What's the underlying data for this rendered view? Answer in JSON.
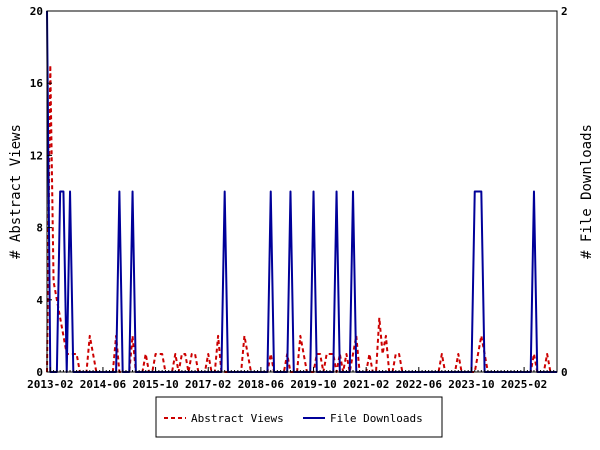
{
  "chart_data": {
    "type": "line",
    "title": "",
    "ylabel": "# Abstract Views",
    "y2label": "# File Downloads",
    "ylim": [
      0,
      20
    ],
    "y2lim": [
      0,
      2
    ],
    "yticks": [
      "0",
      "4",
      "8",
      "12",
      "16",
      "20"
    ],
    "y2ticks": [
      "0",
      "2"
    ],
    "x_range": [
      "2013-01",
      "2025-12"
    ],
    "xtick_labels": [
      "2013-02",
      "2014-06",
      "2015-10",
      "2017-02",
      "2018-06",
      "2019-10",
      "2021-02",
      "2022-06",
      "2023-10",
      "2025-02"
    ],
    "grid": false,
    "legend_position": "bottom",
    "series": [
      {
        "name": "Abstract Views",
        "axis": "left",
        "color": "#cc0000",
        "style": "dashed",
        "points": [
          [
            "2013-01",
            0
          ],
          [
            "2013-02",
            17
          ],
          [
            "2013-03",
            5
          ],
          [
            "2013-04",
            4
          ],
          [
            "2013-05",
            3
          ],
          [
            "2013-06",
            2
          ],
          [
            "2013-07",
            1
          ],
          [
            "2013-09",
            1
          ],
          [
            "2013-10",
            1
          ],
          [
            "2013-11",
            0
          ],
          [
            "2014-01",
            0
          ],
          [
            "2014-02",
            2
          ],
          [
            "2014-03",
            1
          ],
          [
            "2014-04",
            0
          ],
          [
            "2014-09",
            0
          ],
          [
            "2014-10",
            2
          ],
          [
            "2014-11",
            0
          ],
          [
            "2015-02",
            0
          ],
          [
            "2015-03",
            2
          ],
          [
            "2015-04",
            0
          ],
          [
            "2015-06",
            0
          ],
          [
            "2015-07",
            1
          ],
          [
            "2015-08",
            0
          ],
          [
            "2015-09",
            0
          ],
          [
            "2015-10",
            1
          ],
          [
            "2015-11",
            1
          ],
          [
            "2015-12",
            1
          ],
          [
            "2016-01",
            0
          ],
          [
            "2016-03",
            0
          ],
          [
            "2016-04",
            1
          ],
          [
            "2016-05",
            0
          ],
          [
            "2016-06",
            1
          ],
          [
            "2016-07",
            1
          ],
          [
            "2016-08",
            0
          ],
          [
            "2016-09",
            1
          ],
          [
            "2016-10",
            1
          ],
          [
            "2016-11",
            0
          ],
          [
            "2017-01",
            0
          ],
          [
            "2017-02",
            1
          ],
          [
            "2017-03",
            0
          ],
          [
            "2017-04",
            0
          ],
          [
            "2017-05",
            2
          ],
          [
            "2017-06",
            0
          ],
          [
            "2017-12",
            0
          ],
          [
            "2018-01",
            2
          ],
          [
            "2018-02",
            1
          ],
          [
            "2018-03",
            0
          ],
          [
            "2018-08",
            0
          ],
          [
            "2018-09",
            1
          ],
          [
            "2018-10",
            0
          ],
          [
            "2019-01",
            0
          ],
          [
            "2019-02",
            1
          ],
          [
            "2019-03",
            0
          ],
          [
            "2019-05",
            0
          ],
          [
            "2019-06",
            2
          ],
          [
            "2019-07",
            1
          ],
          [
            "2019-08",
            0
          ],
          [
            "2019-10",
            0
          ],
          [
            "2019-11",
            1
          ],
          [
            "2019-12",
            1
          ],
          [
            "2020-01",
            0
          ],
          [
            "2020-02",
            1
          ],
          [
            "2020-03",
            1
          ],
          [
            "2020-04",
            1
          ],
          [
            "2020-05",
            0
          ],
          [
            "2020-06",
            1
          ],
          [
            "2020-07",
            0
          ],
          [
            "2020-08",
            1
          ],
          [
            "2020-09",
            0
          ],
          [
            "2020-10",
            1
          ],
          [
            "2020-11",
            2
          ],
          [
            "2020-12",
            0
          ],
          [
            "2021-02",
            0
          ],
          [
            "2021-03",
            1
          ],
          [
            "2021-04",
            0
          ],
          [
            "2021-05",
            0
          ],
          [
            "2021-06",
            3
          ],
          [
            "2021-07",
            1
          ],
          [
            "2021-08",
            2
          ],
          [
            "2021-09",
            0
          ],
          [
            "2021-10",
            0
          ],
          [
            "2021-11",
            1
          ],
          [
            "2021-12",
            1
          ],
          [
            "2022-01",
            0
          ],
          [
            "2022-12",
            0
          ],
          [
            "2023-01",
            1
          ],
          [
            "2023-02",
            0
          ],
          [
            "2023-05",
            0
          ],
          [
            "2023-06",
            1
          ],
          [
            "2023-07",
            0
          ],
          [
            "2023-11",
            0
          ],
          [
            "2023-12",
            1
          ],
          [
            "2024-01",
            2
          ],
          [
            "2024-02",
            1
          ],
          [
            "2024-03",
            0
          ],
          [
            "2025-04",
            0
          ],
          [
            "2025-05",
            1
          ],
          [
            "2025-06",
            0
          ],
          [
            "2025-08",
            0
          ],
          [
            "2025-09",
            1
          ],
          [
            "2025-10",
            0
          ],
          [
            "2025-12",
            0
          ]
        ]
      },
      {
        "name": "File Downloads",
        "axis": "right",
        "color": "#000099",
        "style": "solid",
        "points": [
          [
            "2013-01",
            2
          ],
          [
            "2013-02",
            0
          ],
          [
            "2013-04",
            0
          ],
          [
            "2013-05",
            1
          ],
          [
            "2013-06",
            1
          ],
          [
            "2013-07",
            0
          ],
          [
            "2013-08",
            1
          ],
          [
            "2013-09",
            0
          ],
          [
            "2014-10",
            0
          ],
          [
            "2014-11",
            1
          ],
          [
            "2014-12",
            0
          ],
          [
            "2015-02",
            0
          ],
          [
            "2015-03",
            1
          ],
          [
            "2015-04",
            0
          ],
          [
            "2017-06",
            0
          ],
          [
            "2017-07",
            1
          ],
          [
            "2017-08",
            0
          ],
          [
            "2018-08",
            0
          ],
          [
            "2018-09",
            1
          ],
          [
            "2018-10",
            0
          ],
          [
            "2019-02",
            0
          ],
          [
            "2019-03",
            1
          ],
          [
            "2019-04",
            0
          ],
          [
            "2019-09",
            0
          ],
          [
            "2019-10",
            1
          ],
          [
            "2019-11",
            0
          ],
          [
            "2020-04",
            0
          ],
          [
            "2020-05",
            1
          ],
          [
            "2020-06",
            0
          ],
          [
            "2020-09",
            0
          ],
          [
            "2020-10",
            1
          ],
          [
            "2020-11",
            0
          ],
          [
            "2023-10",
            0
          ],
          [
            "2023-11",
            1
          ],
          [
            "2024-01",
            1
          ],
          [
            "2024-02",
            0
          ],
          [
            "2025-04",
            0
          ],
          [
            "2025-05",
            1
          ],
          [
            "2025-06",
            0
          ],
          [
            "2025-12",
            0
          ]
        ]
      }
    ]
  }
}
